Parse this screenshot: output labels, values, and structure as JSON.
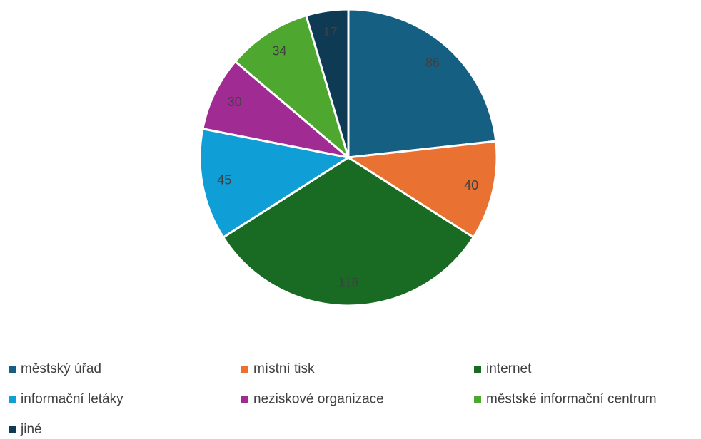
{
  "chart_data": {
    "type": "pie",
    "categories": [
      "městský úřad",
      "místní tisk",
      "internet",
      "informační letáky",
      "neziskové organizace",
      "městské informační centrum",
      "jiné"
    ],
    "values": [
      86,
      40,
      118,
      45,
      30,
      34,
      17
    ],
    "colors": [
      "#156082",
      "#e97132",
      "#196b24",
      "#0f9ed5",
      "#a02b93",
      "#4ea72e",
      "#0e3a53"
    ],
    "legend": "bottom"
  }
}
